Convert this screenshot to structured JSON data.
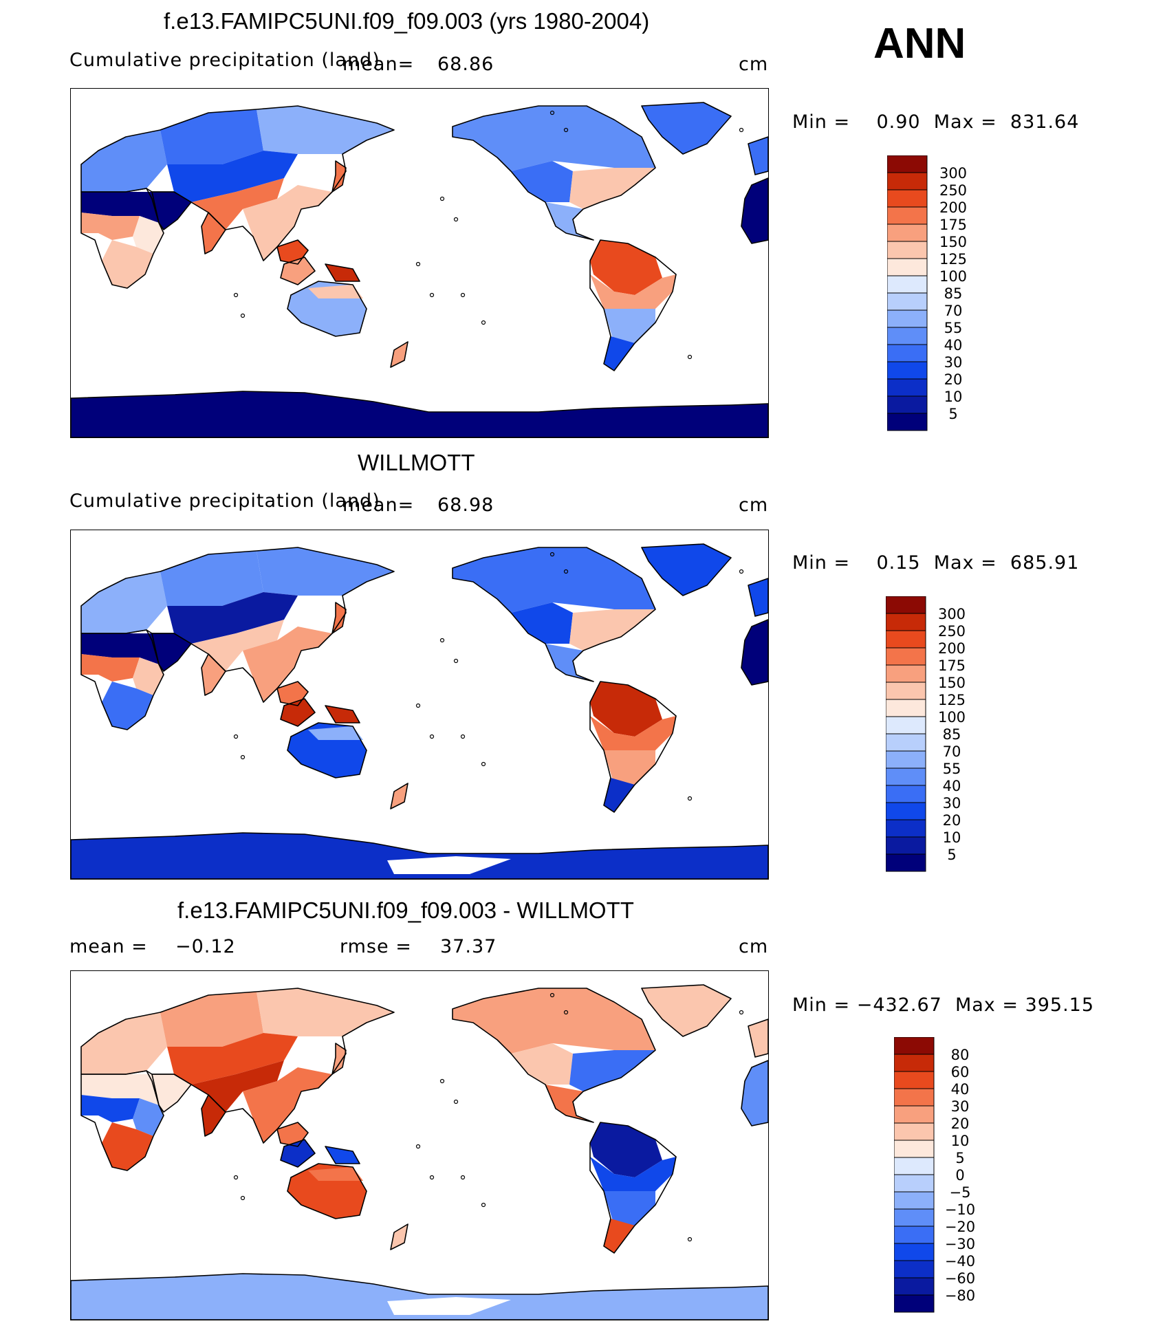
{
  "season": "ANN",
  "units": "cm",
  "panels": [
    {
      "title": "f.e13.FAMIPC5UNI.f09_f09.003 (yrs 1980-2004)",
      "left_label": "Cumulative precipitation (land)",
      "mean_label": "mean=",
      "mean_value": "68.86",
      "rmse_label": "",
      "rmse_value": "",
      "units": "cm",
      "minmax": "Min =    0.90  Max =  831.64",
      "colorbar": [
        "300",
        "250",
        "200",
        "175",
        "150",
        "125",
        "100",
        "85",
        "70",
        "55",
        "40",
        "30",
        "20",
        "10",
        "5"
      ]
    },
    {
      "title": "WILLMOTT",
      "left_label": "Cumulative precipitation (land)",
      "mean_label": "mean=",
      "mean_value": "68.98",
      "rmse_label": "",
      "rmse_value": "",
      "units": "cm",
      "minmax": "Min =    0.15  Max =  685.91",
      "colorbar": [
        "300",
        "250",
        "200",
        "175",
        "150",
        "125",
        "100",
        "85",
        "70",
        "55",
        "40",
        "30",
        "20",
        "10",
        "5"
      ]
    },
    {
      "title": "f.e13.FAMIPC5UNI.f09_f09.003 - WILLMOTT",
      "left_label": "mean =",
      "mean_label": "",
      "mean_value": "−0.12",
      "rmse_label": "rmse =",
      "rmse_value": "37.37",
      "units": "cm",
      "minmax": "Min = −432.67  Max = 395.15",
      "colorbar": [
        "80",
        "60",
        "40",
        "30",
        "20",
        "10",
        "5",
        "0",
        "−5",
        "−10",
        "−20",
        "−30",
        "−40",
        "−60",
        "−80"
      ]
    }
  ],
  "palettes": {
    "precip": [
      "#00007a",
      "#0a1aa0",
      "#0c2fc8",
      "#1048ea",
      "#3a6ef5",
      "#5f8ef8",
      "#8cb0fa",
      "#b8cffc",
      "#dde9fd",
      "#fde8dc",
      "#fbc6ae",
      "#f8a07e",
      "#f3744a",
      "#e84a1e",
      "#c72a08",
      "#8c0a04"
    ],
    "diff": [
      "#00007a",
      "#0a1aa0",
      "#0c2fc8",
      "#1048ea",
      "#3a6ef5",
      "#5f8ef8",
      "#8cb0fa",
      "#b8cffc",
      "#dde9fd",
      "#fde8dc",
      "#fbc6ae",
      "#f8a07e",
      "#f3744a",
      "#e84a1e",
      "#c72a08",
      "#8c0a04"
    ]
  }
}
